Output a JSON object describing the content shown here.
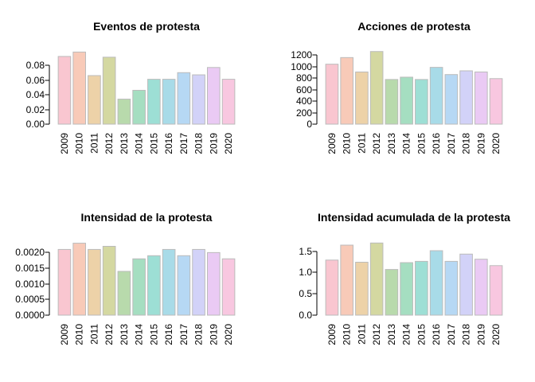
{
  "page": {
    "background": "#FFFFFF"
  },
  "palette": [
    "#F9C6D0",
    "#F8CAB8",
    "#EDD2A8",
    "#D4D8A1",
    "#B8DAAC",
    "#A5DEC1",
    "#9DDFD5",
    "#A8DBE8",
    "#B6D8F4",
    "#D2D2F8",
    "#EACAF4",
    "#F8C7E0"
  ],
  "bar_style": {
    "border": "#BBBBBB",
    "axis_color": "#000000"
  },
  "chart_data": [
    {
      "type": "bar",
      "title": "Eventos de protesta",
      "categories": [
        "2009",
        "2010",
        "2011",
        "2012",
        "2013",
        "2014",
        "2015",
        "2016",
        "2017",
        "2018",
        "2019",
        "2020"
      ],
      "values": [
        0.092,
        0.098,
        0.066,
        0.091,
        0.034,
        0.046,
        0.061,
        0.061,
        0.07,
        0.067,
        0.077,
        0.061
      ],
      "xlabel": "",
      "ylabel": "",
      "ylim": [
        0,
        0.0995
      ],
      "grid": false,
      "yticks": {
        "values": [
          0,
          0.02,
          0.04,
          0.06,
          0.08
        ],
        "labels": [
          "0.00",
          "0.02",
          "0.04",
          "0.06",
          "0.08"
        ]
      }
    },
    {
      "type": "bar",
      "title": "Acciones de protesta",
      "categories": [
        "2009",
        "2010",
        "2011",
        "2012",
        "2013",
        "2014",
        "2015",
        "2016",
        "2017",
        "2018",
        "2019",
        "2020"
      ],
      "values": [
        1040,
        1155,
        905,
        1260,
        775,
        815,
        775,
        985,
        860,
        925,
        905,
        790
      ],
      "xlabel": "",
      "ylabel": "",
      "ylim": [
        0,
        1270
      ],
      "grid": false,
      "yticks": {
        "values": [
          0,
          200,
          400,
          600,
          800,
          1000,
          1200
        ],
        "labels": [
          "0",
          "200",
          "400",
          "600",
          "800",
          "1000",
          "1200"
        ]
      }
    },
    {
      "type": "bar",
      "title": "Intensidad de la protesta",
      "categories": [
        "2009",
        "2010",
        "2011",
        "2012",
        "2013",
        "2014",
        "2015",
        "2016",
        "2017",
        "2018",
        "2019",
        "2020"
      ],
      "values": [
        0.0021,
        0.0023,
        0.0021,
        0.0022,
        0.0014,
        0.0018,
        0.0019,
        0.0021,
        0.0019,
        0.0021,
        0.002,
        0.0018
      ],
      "xlabel": "",
      "ylabel": "",
      "ylim": [
        0,
        0.00234
      ],
      "grid": false,
      "yticks": {
        "values": [
          0,
          0.0005,
          0.001,
          0.0015,
          0.002
        ],
        "labels": [
          "0.0000",
          "0.0005",
          "0.0010",
          "0.0015",
          "0.0020"
        ]
      }
    },
    {
      "type": "bar",
      "title": "Intensidad acumulada de la protesta",
      "categories": [
        "2009",
        "2010",
        "2011",
        "2012",
        "2013",
        "2014",
        "2015",
        "2016",
        "2017",
        "2018",
        "2019",
        "2020"
      ],
      "values": [
        1.29,
        1.64,
        1.24,
        1.69,
        1.07,
        1.23,
        1.26,
        1.51,
        1.26,
        1.43,
        1.31,
        1.16
      ],
      "xlabel": "",
      "ylabel": "",
      "ylim": [
        0,
        1.715
      ],
      "grid": false,
      "yticks": {
        "values": [
          0,
          0.5,
          1.0,
          1.5
        ],
        "labels": [
          "0.0",
          "0.5",
          "1.0",
          "1.5"
        ]
      }
    }
  ]
}
